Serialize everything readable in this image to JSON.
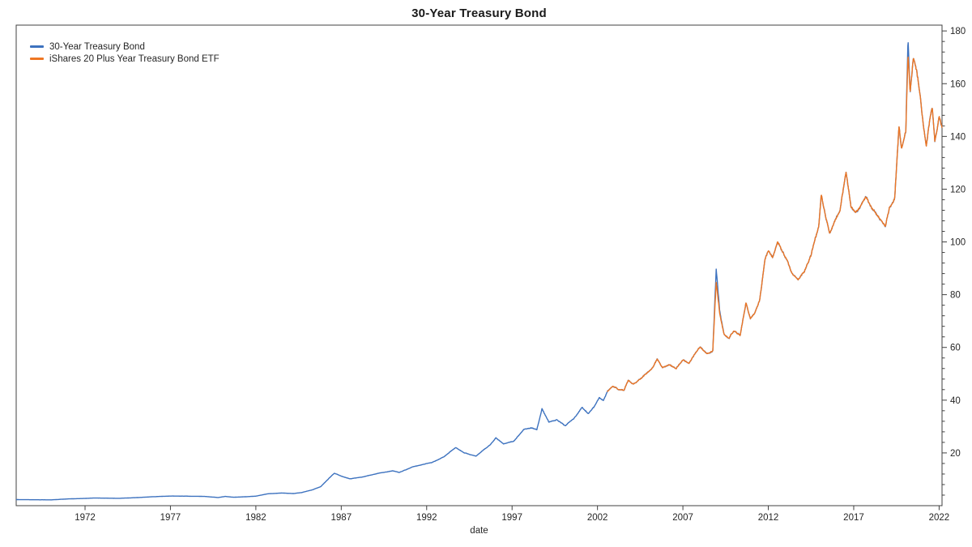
{
  "title": "30-Year Treasury Bond",
  "chart_data": {
    "type": "line",
    "title": "30-Year Treasury Bond",
    "xlabel": "date",
    "ylabel": "",
    "legend_position": "upper left",
    "y_axis_side": "right",
    "grid": false,
    "xlim": [
      1967.97,
      2022.17
    ],
    "ylim": [
      0,
      182.2
    ],
    "x_ticks": [
      1972,
      1977,
      1982,
      1987,
      1992,
      1997,
      2002,
      2007,
      2012,
      2017,
      2022
    ],
    "y_ticks": [
      20,
      40,
      60,
      80,
      100,
      120,
      140,
      160,
      180
    ],
    "y_minor_step": 4,
    "axis_color": "#404040",
    "tick_label_color": "#262626",
    "series": [
      {
        "name": "30-Year Treasury Bond",
        "color": "#3d72bf",
        "anchors": [
          [
            1968.0,
            2.3
          ],
          [
            1969.0,
            2.25
          ],
          [
            1970.0,
            2.2
          ],
          [
            1971.0,
            2.55
          ],
          [
            1972.0,
            2.75
          ],
          [
            1972.5,
            2.9
          ],
          [
            1973.0,
            2.85
          ],
          [
            1974.0,
            2.8
          ],
          [
            1975.0,
            3.05
          ],
          [
            1976.0,
            3.4
          ],
          [
            1977.0,
            3.65
          ],
          [
            1978.0,
            3.6
          ],
          [
            1979.0,
            3.5
          ],
          [
            1979.8,
            3.1
          ],
          [
            1980.2,
            3.5
          ],
          [
            1980.7,
            3.2
          ],
          [
            1981.3,
            3.35
          ],
          [
            1982.0,
            3.6
          ],
          [
            1982.7,
            4.5
          ],
          [
            1983.5,
            4.8
          ],
          [
            1984.2,
            4.6
          ],
          [
            1984.7,
            5.0
          ],
          [
            1985.3,
            6.0
          ],
          [
            1985.8,
            7.2
          ],
          [
            1986.3,
            10.5
          ],
          [
            1986.6,
            12.3
          ],
          [
            1987.1,
            11.0
          ],
          [
            1987.5,
            10.2
          ],
          [
            1988.2,
            10.8
          ],
          [
            1989.2,
            12.3
          ],
          [
            1990.0,
            13.2
          ],
          [
            1990.4,
            12.6
          ],
          [
            1991.2,
            14.8
          ],
          [
            1992.3,
            16.3
          ],
          [
            1993.0,
            18.5
          ],
          [
            1993.7,
            22.0
          ],
          [
            1994.2,
            20.0
          ],
          [
            1994.9,
            18.8
          ],
          [
            1995.7,
            23.0
          ],
          [
            1996.05,
            25.8
          ],
          [
            1996.5,
            23.4
          ],
          [
            1997.1,
            24.5
          ],
          [
            1997.7,
            29.0
          ],
          [
            1998.1,
            29.5
          ],
          [
            1998.45,
            28.8
          ],
          [
            1998.75,
            36.8
          ],
          [
            1999.15,
            31.8
          ],
          [
            1999.6,
            32.5
          ],
          [
            2000.1,
            30.3
          ],
          [
            2000.6,
            33.0
          ],
          [
            2001.1,
            37.3
          ],
          [
            2001.45,
            35.0
          ],
          [
            2001.8,
            37.5
          ],
          [
            2002.1,
            41.0
          ],
          [
            2002.35,
            40.0
          ],
          [
            2002.6,
            43.5
          ],
          [
            2002.9,
            45.5
          ],
          [
            2003.2,
            44.0
          ],
          [
            2003.55,
            43.8
          ],
          [
            2003.8,
            47.5
          ],
          [
            2004.1,
            46.0
          ],
          [
            2004.5,
            48.0
          ],
          [
            2004.9,
            50.5
          ],
          [
            2005.2,
            52.0
          ],
          [
            2005.5,
            55.5
          ],
          [
            2005.8,
            52.5
          ],
          [
            2006.2,
            53.5
          ],
          [
            2006.6,
            52.0
          ],
          [
            2007.0,
            55.5
          ],
          [
            2007.35,
            54.0
          ],
          [
            2007.7,
            57.5
          ],
          [
            2008.0,
            60.0
          ],
          [
            2008.4,
            57.5
          ],
          [
            2008.75,
            59.0
          ],
          [
            2008.95,
            90.0
          ],
          [
            2009.15,
            74.0
          ],
          [
            2009.4,
            65.0
          ],
          [
            2009.7,
            63.5
          ],
          [
            2010.0,
            66.5
          ],
          [
            2010.35,
            64.5
          ],
          [
            2010.7,
            77.0
          ],
          [
            2010.95,
            71.0
          ],
          [
            2011.2,
            73.0
          ],
          [
            2011.5,
            78.0
          ],
          [
            2011.8,
            93.0
          ],
          [
            2012.0,
            97.0
          ],
          [
            2012.25,
            94.0
          ],
          [
            2012.55,
            100.0
          ],
          [
            2012.8,
            96.5
          ],
          [
            2013.1,
            93.0
          ],
          [
            2013.4,
            88.0
          ],
          [
            2013.75,
            85.5
          ],
          [
            2014.1,
            88.5
          ],
          [
            2014.5,
            95.0
          ],
          [
            2014.95,
            106.0
          ],
          [
            2015.1,
            118.0
          ],
          [
            2015.35,
            110.0
          ],
          [
            2015.6,
            103.5
          ],
          [
            2015.9,
            108.0
          ],
          [
            2016.2,
            112.0
          ],
          [
            2016.55,
            127.0
          ],
          [
            2016.85,
            113.0
          ],
          [
            2017.1,
            111.0
          ],
          [
            2017.4,
            114.0
          ],
          [
            2017.7,
            117.0
          ],
          [
            2018.0,
            113.5
          ],
          [
            2018.35,
            110.0
          ],
          [
            2018.85,
            106.0
          ],
          [
            2019.1,
            113.0
          ],
          [
            2019.4,
            116.0
          ],
          [
            2019.65,
            144.0
          ],
          [
            2019.8,
            135.0
          ],
          [
            2020.05,
            142.0
          ],
          [
            2020.18,
            178.0
          ],
          [
            2020.3,
            157.0
          ],
          [
            2020.5,
            170.0
          ],
          [
            2020.7,
            164.0
          ],
          [
            2020.9,
            155.0
          ],
          [
            2021.1,
            143.0
          ],
          [
            2021.25,
            136.5
          ],
          [
            2021.45,
            146.0
          ],
          [
            2021.6,
            151.0
          ],
          [
            2021.75,
            138.5
          ],
          [
            2021.9,
            143.0
          ],
          [
            2022.0,
            148.0
          ],
          [
            2022.17,
            143.5
          ]
        ]
      },
      {
        "name": "iShares 20 Plus Year Treasury Bond ETF",
        "color": "#ee7623",
        "start": 2002.55,
        "anchors": [
          [
            2002.55,
            43.0
          ],
          [
            2002.9,
            45.5
          ],
          [
            2003.2,
            44.0
          ],
          [
            2003.55,
            43.8
          ],
          [
            2003.8,
            47.5
          ],
          [
            2004.1,
            46.0
          ],
          [
            2004.5,
            48.0
          ],
          [
            2004.9,
            50.5
          ],
          [
            2005.2,
            52.0
          ],
          [
            2005.5,
            55.5
          ],
          [
            2005.8,
            52.5
          ],
          [
            2006.2,
            53.5
          ],
          [
            2006.6,
            52.0
          ],
          [
            2007.0,
            55.5
          ],
          [
            2007.35,
            54.0
          ],
          [
            2007.7,
            57.5
          ],
          [
            2008.0,
            60.0
          ],
          [
            2008.4,
            57.5
          ],
          [
            2008.75,
            59.0
          ],
          [
            2008.95,
            85.0
          ],
          [
            2009.15,
            73.0
          ],
          [
            2009.4,
            65.0
          ],
          [
            2009.7,
            63.5
          ],
          [
            2010.0,
            66.5
          ],
          [
            2010.35,
            64.5
          ],
          [
            2010.7,
            77.0
          ],
          [
            2010.95,
            71.0
          ],
          [
            2011.2,
            73.0
          ],
          [
            2011.5,
            78.0
          ],
          [
            2011.8,
            93.0
          ],
          [
            2012.0,
            97.0
          ],
          [
            2012.25,
            94.0
          ],
          [
            2012.55,
            100.0
          ],
          [
            2012.8,
            96.5
          ],
          [
            2013.1,
            93.0
          ],
          [
            2013.4,
            88.0
          ],
          [
            2013.75,
            85.5
          ],
          [
            2014.1,
            88.5
          ],
          [
            2014.5,
            95.0
          ],
          [
            2014.95,
            106.0
          ],
          [
            2015.1,
            118.0
          ],
          [
            2015.35,
            110.0
          ],
          [
            2015.6,
            103.5
          ],
          [
            2015.9,
            108.0
          ],
          [
            2016.2,
            112.0
          ],
          [
            2016.55,
            127.0
          ],
          [
            2016.85,
            113.0
          ],
          [
            2017.1,
            111.0
          ],
          [
            2017.4,
            114.0
          ],
          [
            2017.7,
            117.0
          ],
          [
            2018.0,
            113.5
          ],
          [
            2018.35,
            110.0
          ],
          [
            2018.85,
            106.0
          ],
          [
            2019.1,
            113.0
          ],
          [
            2019.4,
            116.0
          ],
          [
            2019.65,
            144.0
          ],
          [
            2019.8,
            135.0
          ],
          [
            2020.05,
            142.0
          ],
          [
            2020.18,
            172.0
          ],
          [
            2020.3,
            157.0
          ],
          [
            2020.5,
            170.0
          ],
          [
            2020.7,
            164.0
          ],
          [
            2020.9,
            155.0
          ],
          [
            2021.1,
            143.0
          ],
          [
            2021.25,
            136.5
          ],
          [
            2021.45,
            146.0
          ],
          [
            2021.6,
            151.0
          ],
          [
            2021.75,
            138.5
          ],
          [
            2021.9,
            143.0
          ],
          [
            2022.0,
            148.0
          ],
          [
            2022.17,
            143.5
          ]
        ]
      }
    ]
  }
}
